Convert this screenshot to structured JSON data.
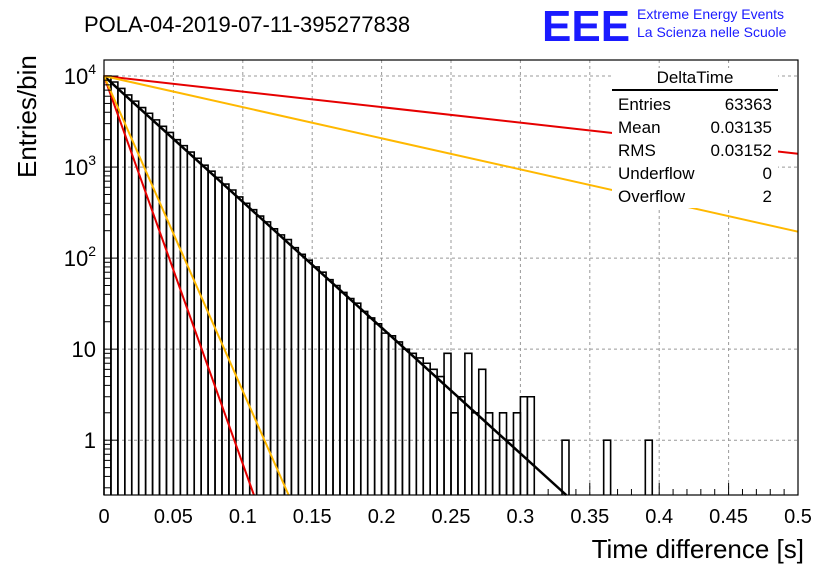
{
  "title": "POLA-04-2019-07-11-395277838",
  "logo": {
    "mark": "EEE",
    "line1": "Extreme Energy Events",
    "line2": "La Scienza nelle Scuole",
    "color": "#1a1aff"
  },
  "stats_box": {
    "name": "DeltaTime",
    "rows": [
      {
        "label": "Entries",
        "value": "63363"
      },
      {
        "label": "Mean",
        "value": "0.03135"
      },
      {
        "label": "RMS",
        "value": "0.03152"
      },
      {
        "label": "Underflow",
        "value": "0"
      },
      {
        "label": "Overflow",
        "value": "2"
      }
    ]
  },
  "chart_data": {
    "type": "line",
    "title": "POLA-04-2019-07-11-395277838",
    "xlabel": "Time difference [s]",
    "ylabel": "Entries/bin",
    "xlim": [
      0,
      0.5
    ],
    "ylim": [
      0.25,
      15000
    ],
    "yscale": "log",
    "grid": true,
    "x_ticks": [
      "0",
      "0.05",
      "0.1",
      "0.15",
      "0.2",
      "0.25",
      "0.3",
      "0.35",
      "0.4",
      "0.45",
      "0.5"
    ],
    "y_ticks": [
      {
        "value": 1,
        "label": "1"
      },
      {
        "value": 10,
        "label": "10"
      },
      {
        "value": 100,
        "label": "10",
        "exp": "2"
      },
      {
        "value": 1000,
        "label": "10",
        "exp": "3"
      },
      {
        "value": 10000,
        "label": "10",
        "exp": "4"
      }
    ],
    "histogram": {
      "bin_width": 0.005,
      "color": "#000000",
      "counts": [
        10000,
        8600,
        7300,
        6200,
        5300,
        4500,
        3900,
        3300,
        2800,
        2400,
        2000,
        1720,
        1460,
        1250,
        1050,
        900,
        770,
        650,
        560,
        470,
        400,
        340,
        290,
        250,
        210,
        180,
        160,
        130,
        110,
        95,
        80,
        70,
        58,
        50,
        42,
        36,
        32,
        26,
        22,
        19,
        15,
        14,
        12,
        10,
        9,
        8,
        7,
        6,
        5,
        9,
        2,
        3,
        9,
        2,
        6,
        2,
        1,
        2,
        1,
        2,
        3,
        3,
        0,
        0,
        0,
        0,
        1,
        0,
        0,
        0,
        0,
        0,
        1,
        0,
        0,
        0,
        0,
        0,
        1,
        0,
        0,
        0,
        0,
        0,
        0,
        0,
        0,
        0,
        0,
        0,
        0,
        0,
        0,
        0,
        0,
        0,
        0,
        0,
        0,
        0
      ]
    },
    "series": [
      {
        "color": "#000000",
        "points": [
          [
            0,
            10000
          ],
          [
            0.333,
            0.25
          ]
        ]
      },
      {
        "color": "#e60000",
        "points": [
          [
            0,
            10000
          ],
          [
            0.108,
            0.25
          ]
        ]
      },
      {
        "color": "#ffb800",
        "points": [
          [
            0,
            10000
          ],
          [
            0.133,
            0.25
          ]
        ]
      },
      {
        "color": "#e60000",
        "points": [
          [
            0,
            10000
          ],
          [
            0.5,
            1400
          ]
        ]
      },
      {
        "color": "#ffb800",
        "points": [
          [
            0,
            10000
          ],
          [
            0.5,
            195
          ]
        ]
      }
    ]
  }
}
